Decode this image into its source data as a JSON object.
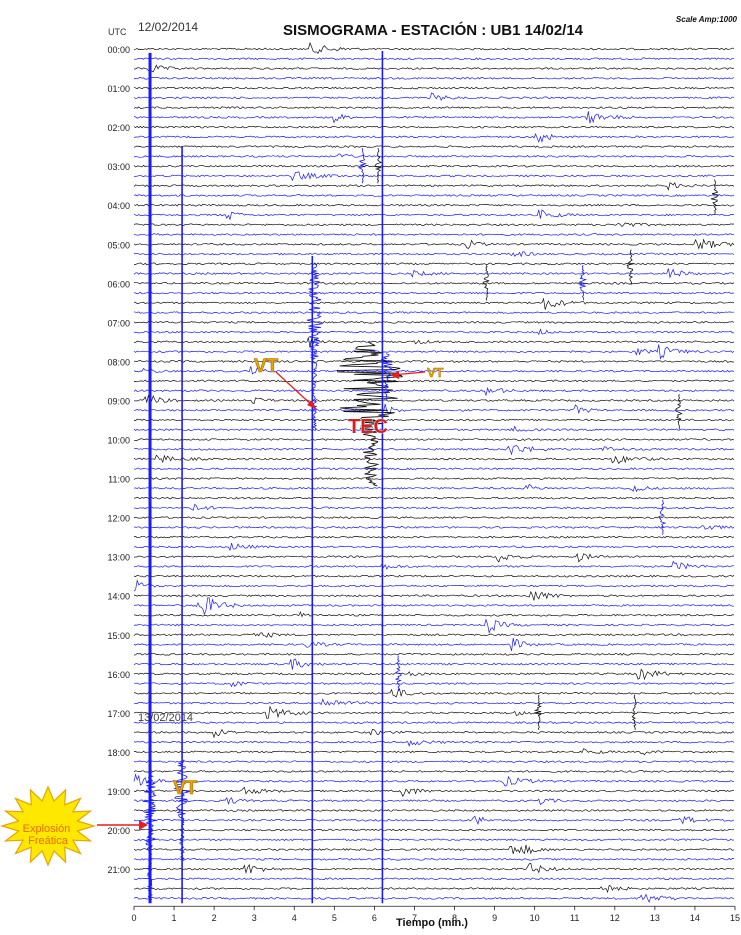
{
  "header": {
    "utc_label": "UTC",
    "date_left": "12/02/2014",
    "title": "SISMOGRAMA - ESTACIÓN : UB1 14/02/14",
    "scale": "Scale Amp:1000"
  },
  "colors": {
    "trace_black": "#111111",
    "trace_blue": "#1a1aff",
    "annotation_vt": "#e0a800",
    "annotation_tec": "#d62020",
    "arrow": "#e02020",
    "star_fill": "#ffe800",
    "star_stroke": "#e8a400",
    "star_text": "#e86a00"
  },
  "chart_data": {
    "type": "seismogram",
    "xlabel": "Tiempo (min.)",
    "xlim": [
      0,
      15
    ],
    "x_ticks": [
      0,
      1,
      2,
      3,
      4,
      5,
      6,
      7,
      8,
      9,
      10,
      11,
      12,
      13,
      14,
      15
    ],
    "hours": [
      "00:00",
      "01:00",
      "02:00",
      "03:00",
      "04:00",
      "05:00",
      "06:00",
      "07:00",
      "08:00",
      "09:00",
      "10:00",
      "11:00",
      "12:00",
      "13:00",
      "14:00",
      "15:00",
      "16:00",
      "17:00",
      "18:00",
      "19:00",
      "20:00",
      "21:00"
    ],
    "traces_per_hour": 4,
    "trace_minutes": 15,
    "date_marker": {
      "hour": "17:00",
      "label": "13/02/2014"
    },
    "large_events": [
      {
        "label": "VT",
        "hour_start": 5.5,
        "hour_end": 9.8,
        "minute": 4.5
      },
      {
        "label": "TEC",
        "hour_start": 7.5,
        "hour_end": 11.2,
        "minute": 5.9
      },
      {
        "label": "VT",
        "hour_start": 7.8,
        "hour_end": 9.0,
        "minute": 6.3
      },
      {
        "label": "VT",
        "hour_start": 18.2,
        "hour_end": 20.8,
        "minute": 1.2
      },
      {
        "label": "Explosión Freática",
        "hour_start": 18.5,
        "hour_end": 21.8,
        "minute": 0.4
      }
    ],
    "annotations": [
      {
        "text": "VT",
        "kind": "vt"
      },
      {
        "text": "VT",
        "kind": "vt_small"
      },
      {
        "text": "TEC",
        "kind": "tec"
      },
      {
        "text": "VT",
        "kind": "vt"
      },
      {
        "text": "Explosión Freática",
        "kind": "star"
      }
    ]
  }
}
